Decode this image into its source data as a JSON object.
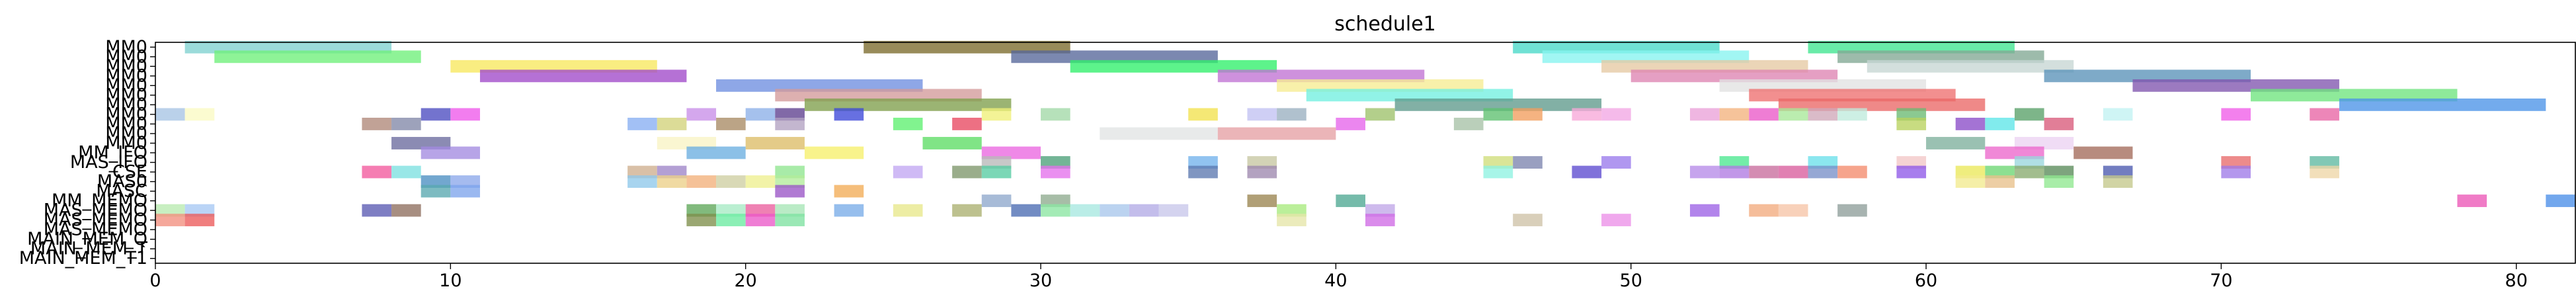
{
  "chart_data": {
    "type": "gantt",
    "title": "schedule1",
    "xlabel": "",
    "ylabel": "",
    "xlim": [
      0,
      82
    ],
    "xticks": [
      0,
      10,
      20,
      30,
      40,
      50,
      60,
      70,
      80
    ],
    "grid": false,
    "rows": [
      "MM0",
      "MM0",
      "MM0",
      "MM0",
      "MM0",
      "MM0",
      "MM0",
      "MM0",
      "MM0",
      "MM0",
      "MM0",
      "MM_IFO",
      "MAS_IFO",
      "CSE",
      "MAS0",
      "MASC",
      "MM_MEMO",
      "MAS_MEMO",
      "MAS_MEMO",
      "MAS_MEMO",
      "MAIN_MEM_Q",
      "MAIN_MEM_T",
      "MAIN_MEM_T1"
    ],
    "tasks": [
      {
        "row": 0,
        "start": 1,
        "end": 8,
        "color": "#7fd1cf"
      },
      {
        "row": 0,
        "start": 24,
        "end": 31,
        "color": "#7b6a2b"
      },
      {
        "row": 0,
        "start": 46,
        "end": 53,
        "color": "#48d8c8"
      },
      {
        "row": 0,
        "start": 56,
        "end": 63,
        "color": "#3fe690"
      },
      {
        "row": 1,
        "start": 2,
        "end": 9,
        "color": "#6ef07a"
      },
      {
        "row": 1,
        "start": 29,
        "end": 36,
        "color": "#56679a"
      },
      {
        "row": 1,
        "start": 47,
        "end": 54,
        "color": "#86f3f0"
      },
      {
        "row": 1,
        "start": 57,
        "end": 64,
        "color": "#82a894"
      },
      {
        "row": 2,
        "start": 10,
        "end": 17,
        "color": "#f7e85e"
      },
      {
        "row": 2,
        "start": 31,
        "end": 38,
        "color": "#2ff06a"
      },
      {
        "row": 2,
        "start": 49,
        "end": 56,
        "color": "#e5c9a3"
      },
      {
        "row": 2,
        "start": 58,
        "end": 65,
        "color": "#c6d6d4"
      },
      {
        "row": 3,
        "start": 11,
        "end": 18,
        "color": "#a049c9"
      },
      {
        "row": 3,
        "start": 36,
        "end": 43,
        "color": "#c072d4"
      },
      {
        "row": 3,
        "start": 50,
        "end": 57,
        "color": "#de84b2"
      },
      {
        "row": 3,
        "start": 64,
        "end": 71,
        "color": "#5a92b8"
      },
      {
        "row": 4,
        "start": 19,
        "end": 26,
        "color": "#6e8ee0"
      },
      {
        "row": 4,
        "start": 38,
        "end": 45,
        "color": "#f6ec92"
      },
      {
        "row": 4,
        "start": 53,
        "end": 60,
        "color": "#e2e2e2"
      },
      {
        "row": 4,
        "start": 67,
        "end": 74,
        "color": "#8054ae"
      },
      {
        "row": 5,
        "start": 21,
        "end": 28,
        "color": "#d49a9a"
      },
      {
        "row": 5,
        "start": 39,
        "end": 46,
        "color": "#72efe0"
      },
      {
        "row": 5,
        "start": 54,
        "end": 61,
        "color": "#ee6f70"
      },
      {
        "row": 5,
        "start": 71,
        "end": 78,
        "color": "#6ee47e"
      },
      {
        "row": 6,
        "start": 22,
        "end": 29,
        "color": "#7f9f4c"
      },
      {
        "row": 6,
        "start": 42,
        "end": 49,
        "color": "#5f9a8c"
      },
      {
        "row": 6,
        "start": 55,
        "end": 62,
        "color": "#ea6866"
      },
      {
        "row": 6,
        "start": 74,
        "end": 81,
        "color": "#4c94e8"
      },
      {
        "row": 7,
        "start": 0,
        "end": 1,
        "color": "#a7c4e4"
      },
      {
        "row": 7,
        "start": 1,
        "end": 2,
        "color": "#fafac3"
      },
      {
        "row": 7,
        "start": 9,
        "end": 10,
        "color": "#4c4cc0"
      },
      {
        "row": 7,
        "start": 10,
        "end": 11,
        "color": "#ee58ea"
      },
      {
        "row": 7,
        "start": 18,
        "end": 19,
        "color": "#c88ee8"
      },
      {
        "row": 7,
        "start": 20,
        "end": 21,
        "color": "#8cb0e8"
      },
      {
        "row": 7,
        "start": 21,
        "end": 22,
        "color": "#5e3f8e"
      },
      {
        "row": 7,
        "start": 23,
        "end": 24,
        "color": "#3c48d8"
      },
      {
        "row": 7,
        "start": 28,
        "end": 29,
        "color": "#f0f078"
      },
      {
        "row": 7,
        "start": 30,
        "end": 31,
        "color": "#a2d8a6"
      },
      {
        "row": 7,
        "start": 35,
        "end": 36,
        "color": "#f2e24e"
      },
      {
        "row": 7,
        "start": 37,
        "end": 38,
        "color": "#c2c2f2"
      },
      {
        "row": 7,
        "start": 38,
        "end": 39,
        "color": "#9ab0c0"
      },
      {
        "row": 7,
        "start": 41,
        "end": 42,
        "color": "#9ec26a"
      },
      {
        "row": 7,
        "start": 45,
        "end": 46,
        "color": "#5ec070"
      },
      {
        "row": 7,
        "start": 46,
        "end": 47,
        "color": "#f29e5e"
      },
      {
        "row": 7,
        "start": 48,
        "end": 49,
        "color": "#f7a8d8"
      },
      {
        "row": 7,
        "start": 49,
        "end": 50,
        "color": "#f2a6e4"
      },
      {
        "row": 7,
        "start": 52,
        "end": 53,
        "color": "#eaa2d8"
      },
      {
        "row": 7,
        "start": 53,
        "end": 54,
        "color": "#f4b27e"
      },
      {
        "row": 7,
        "start": 54,
        "end": 55,
        "color": "#ea58c8"
      },
      {
        "row": 7,
        "start": 55,
        "end": 56,
        "color": "#a8e898"
      },
      {
        "row": 7,
        "start": 56,
        "end": 57,
        "color": "#cfa8b8"
      },
      {
        "row": 7,
        "start": 57,
        "end": 58,
        "color": "#bfeadc"
      },
      {
        "row": 7,
        "start": 59,
        "end": 60,
        "color": "#6aba72"
      },
      {
        "row": 7,
        "start": 63,
        "end": 64,
        "color": "#58a068"
      },
      {
        "row": 7,
        "start": 66,
        "end": 67,
        "color": "#c2f2f2"
      },
      {
        "row": 7,
        "start": 70,
        "end": 71,
        "color": "#f05ce8"
      },
      {
        "row": 7,
        "start": 73,
        "end": 74,
        "color": "#e864a4"
      },
      {
        "row": 8,
        "start": 7,
        "end": 8,
        "color": "#b08878"
      },
      {
        "row": 8,
        "start": 8,
        "end": 9,
        "color": "#8288a8"
      },
      {
        "row": 8,
        "start": 16,
        "end": 17,
        "color": "#88aef2"
      },
      {
        "row": 8,
        "start": 17,
        "end": 18,
        "color": "#d2d27a"
      },
      {
        "row": 8,
        "start": 19,
        "end": 20,
        "color": "#a88a64"
      },
      {
        "row": 8,
        "start": 21,
        "end": 22,
        "color": "#b2a2c2"
      },
      {
        "row": 8,
        "start": 25,
        "end": 26,
        "color": "#5ef070"
      },
      {
        "row": 8,
        "start": 27,
        "end": 28,
        "color": "#e84860"
      },
      {
        "row": 8,
        "start": 40,
        "end": 41,
        "color": "#e664ea"
      },
      {
        "row": 8,
        "start": 44,
        "end": 45,
        "color": "#a6c2a6"
      },
      {
        "row": 8,
        "start": 59,
        "end": 60,
        "color": "#b8d25e"
      },
      {
        "row": 8,
        "start": 61,
        "end": 62,
        "color": "#8a4cc8"
      },
      {
        "row": 8,
        "start": 62,
        "end": 63,
        "color": "#5ee6e8"
      },
      {
        "row": 8,
        "start": 64,
        "end": 65,
        "color": "#d85a7a"
      },
      {
        "row": 9,
        "start": 32,
        "end": 36,
        "color": "#e2e4e4"
      },
      {
        "row": 9,
        "start": 36,
        "end": 40,
        "color": "#e6a0a4"
      },
      {
        "row": 10,
        "start": 8,
        "end": 10,
        "color": "#6a6a9e"
      },
      {
        "row": 10,
        "start": 17,
        "end": 19,
        "color": "#f8f4c4"
      },
      {
        "row": 10,
        "start": 20,
        "end": 22,
        "color": "#dcbc66"
      },
      {
        "row": 10,
        "start": 26,
        "end": 28,
        "color": "#5cdc64"
      },
      {
        "row": 10,
        "start": 60,
        "end": 62,
        "color": "#7eb09c"
      },
      {
        "row": 10,
        "start": 63,
        "end": 65,
        "color": "#ecd2f2"
      },
      {
        "row": 11,
        "start": 9,
        "end": 11,
        "color": "#a38ae0"
      },
      {
        "row": 11,
        "start": 18,
        "end": 20,
        "color": "#6aaee0"
      },
      {
        "row": 11,
        "start": 22,
        "end": 24,
        "color": "#f6f06a"
      },
      {
        "row": 11,
        "start": 28,
        "end": 30,
        "color": "#ea66e0"
      },
      {
        "row": 11,
        "start": 62,
        "end": 64,
        "color": "#ec66cc"
      },
      {
        "row": 11,
        "start": 65,
        "end": 67,
        "color": "#a36a5a"
      },
      {
        "row": 12,
        "start": 28,
        "end": 29,
        "color": "#b8b8b8"
      },
      {
        "row": 12,
        "start": 30,
        "end": 31,
        "color": "#4ca078"
      },
      {
        "row": 12,
        "start": 35,
        "end": 36,
        "color": "#72b2ec"
      },
      {
        "row": 12,
        "start": 37,
        "end": 38,
        "color": "#c6c6a2"
      },
      {
        "row": 12,
        "start": 45,
        "end": 46,
        "color": "#d0de7a"
      },
      {
        "row": 12,
        "start": 46,
        "end": 47,
        "color": "#7c84ae"
      },
      {
        "row": 12,
        "start": 49,
        "end": 50,
        "color": "#9a7aec"
      },
      {
        "row": 12,
        "start": 53,
        "end": 54,
        "color": "#4ce890"
      },
      {
        "row": 12,
        "start": 56,
        "end": 57,
        "color": "#6ae0ea"
      },
      {
        "row": 12,
        "start": 59,
        "end": 60,
        "color": "#f2c6c6"
      },
      {
        "row": 12,
        "start": 63,
        "end": 64,
        "color": "#9ad6dc"
      },
      {
        "row": 12,
        "start": 70,
        "end": 71,
        "color": "#e86a6a"
      },
      {
        "row": 12,
        "start": 73,
        "end": 74,
        "color": "#5eb8a0"
      },
      {
        "row": 13,
        "start": 7,
        "end": 8,
        "color": "#f2589c"
      },
      {
        "row": 13,
        "start": 8,
        "end": 9,
        "color": "#7ce0e0"
      },
      {
        "row": 13,
        "start": 16,
        "end": 17,
        "color": "#ceae8e"
      },
      {
        "row": 13,
        "start": 17,
        "end": 18,
        "color": "#9e84c8"
      },
      {
        "row": 13,
        "start": 21,
        "end": 22,
        "color": "#90e690"
      },
      {
        "row": 13,
        "start": 25,
        "end": 26,
        "color": "#c2a6f2"
      },
      {
        "row": 13,
        "start": 27,
        "end": 28,
        "color": "#7e966a"
      },
      {
        "row": 13,
        "start": 28,
        "end": 29,
        "color": "#56cca2"
      },
      {
        "row": 13,
        "start": 30,
        "end": 31,
        "color": "#e470ec"
      },
      {
        "row": 13,
        "start": 35,
        "end": 36,
        "color": "#5c78b0"
      },
      {
        "row": 13,
        "start": 37,
        "end": 38,
        "color": "#9e88ae"
      },
      {
        "row": 13,
        "start": 45,
        "end": 46,
        "color": "#8ef2e2"
      },
      {
        "row": 13,
        "start": 48,
        "end": 49,
        "color": "#5c4ad0"
      },
      {
        "row": 13,
        "start": 52,
        "end": 53,
        "color": "#b68ae8"
      },
      {
        "row": 13,
        "start": 53,
        "end": 54,
        "color": "#b07ae2"
      },
      {
        "row": 13,
        "start": 54,
        "end": 55,
        "color": "#c86c9c"
      },
      {
        "row": 13,
        "start": 55,
        "end": 56,
        "color": "#d85c9c"
      },
      {
        "row": 13,
        "start": 56,
        "end": 57,
        "color": "#7890c8"
      },
      {
        "row": 13,
        "start": 57,
        "end": 58,
        "color": "#f48a6c"
      },
      {
        "row": 13,
        "start": 59,
        "end": 60,
        "color": "#8e58e8"
      },
      {
        "row": 13,
        "start": 61,
        "end": 62,
        "color": "#eae85a"
      },
      {
        "row": 13,
        "start": 62,
        "end": 63,
        "color": "#6cd672"
      },
      {
        "row": 13,
        "start": 63,
        "end": 64,
        "color": "#88aa6e"
      },
      {
        "row": 13,
        "start": 64,
        "end": 65,
        "color": "#5a8a5a"
      },
      {
        "row": 13,
        "start": 66,
        "end": 67,
        "color": "#4a58ae"
      },
      {
        "row": 13,
        "start": 70,
        "end": 71,
        "color": "#9f7ae8"
      },
      {
        "row": 13,
        "start": 73,
        "end": 74,
        "color": "#eed6a6"
      },
      {
        "row": 14,
        "start": 9,
        "end": 10,
        "color": "#4a8ec2"
      },
      {
        "row": 14,
        "start": 10,
        "end": 11,
        "color": "#8ca8ea"
      },
      {
        "row": 14,
        "start": 16,
        "end": 17,
        "color": "#8ec8ea"
      },
      {
        "row": 14,
        "start": 17,
        "end": 18,
        "color": "#ecd088"
      },
      {
        "row": 14,
        "start": 18,
        "end": 19,
        "color": "#f2b07a"
      },
      {
        "row": 14,
        "start": 19,
        "end": 20,
        "color": "#cecea2"
      },
      {
        "row": 14,
        "start": 20,
        "end": 21,
        "color": "#eef090"
      },
      {
        "row": 14,
        "start": 21,
        "end": 22,
        "color": "#b2ec9a"
      },
      {
        "row": 14,
        "start": 61,
        "end": 62,
        "color": "#f2ea8e"
      },
      {
        "row": 14,
        "start": 62,
        "end": 63,
        "color": "#e8c08a"
      },
      {
        "row": 14,
        "start": 64,
        "end": 65,
        "color": "#90e890"
      },
      {
        "row": 14,
        "start": 66,
        "end": 67,
        "color": "#c4c88a"
      },
      {
        "row": 15,
        "start": 9,
        "end": 10,
        "color": "#58a8b0"
      },
      {
        "row": 15,
        "start": 10,
        "end": 11,
        "color": "#7ea4ec"
      },
      {
        "row": 15,
        "start": 21,
        "end": 22,
        "color": "#9a54c6"
      },
      {
        "row": 15,
        "start": 23,
        "end": 24,
        "color": "#f2ac56"
      },
      {
        "row": 16,
        "start": 28,
        "end": 29,
        "color": "#8ea8cc"
      },
      {
        "row": 16,
        "start": 30,
        "end": 31,
        "color": "#8eaa8e"
      },
      {
        "row": 16,
        "start": 37,
        "end": 38,
        "color": "#9a8450"
      },
      {
        "row": 16,
        "start": 40,
        "end": 41,
        "color": "#4ea892"
      },
      {
        "row": 16,
        "start": 78,
        "end": 79,
        "color": "#ec56b6"
      },
      {
        "row": 16,
        "start": 81,
        "end": 82,
        "color": "#4a8ee8"
      },
      {
        "row": 17,
        "start": 0,
        "end": 1,
        "color": "#b8eab0"
      },
      {
        "row": 17,
        "start": 1,
        "end": 2,
        "color": "#a6c8f4"
      },
      {
        "row": 17,
        "start": 7,
        "end": 8,
        "color": "#5a5ab2"
      },
      {
        "row": 17,
        "start": 8,
        "end": 9,
        "color": "#8e6e5e"
      },
      {
        "row": 17,
        "start": 18,
        "end": 19,
        "color": "#5ea658"
      },
      {
        "row": 17,
        "start": 19,
        "end": 20,
        "color": "#a6eac4"
      },
      {
        "row": 17,
        "start": 20,
        "end": 21,
        "color": "#ea5e9e"
      },
      {
        "row": 17,
        "start": 21,
        "end": 22,
        "color": "#a6e6b6"
      },
      {
        "row": 17,
        "start": 23,
        "end": 24,
        "color": "#78ace8"
      },
      {
        "row": 17,
        "start": 25,
        "end": 26,
        "color": "#e8e88a"
      },
      {
        "row": 17,
        "start": 27,
        "end": 28,
        "color": "#aab070"
      },
      {
        "row": 17,
        "start": 29,
        "end": 30,
        "color": "#4a6cb2"
      },
      {
        "row": 17,
        "start": 30,
        "end": 31,
        "color": "#8ae6a2"
      },
      {
        "row": 17,
        "start": 31,
        "end": 32,
        "color": "#a6e8e0"
      },
      {
        "row": 17,
        "start": 32,
        "end": 33,
        "color": "#a8c6ec"
      },
      {
        "row": 17,
        "start": 33,
        "end": 34,
        "color": "#b2aae6"
      },
      {
        "row": 17,
        "start": 34,
        "end": 35,
        "color": "#c8c6ea"
      },
      {
        "row": 17,
        "start": 38,
        "end": 39,
        "color": "#a8ea7e"
      },
      {
        "row": 17,
        "start": 41,
        "end": 42,
        "color": "#c0a6e8"
      },
      {
        "row": 17,
        "start": 52,
        "end": 53,
        "color": "#9c62e6"
      },
      {
        "row": 17,
        "start": 54,
        "end": 55,
        "color": "#f2aa7e"
      },
      {
        "row": 17,
        "start": 55,
        "end": 56,
        "color": "#f6c4a6"
      },
      {
        "row": 17,
        "start": 57,
        "end": 58,
        "color": "#8e9e9a"
      },
      {
        "row": 18,
        "start": 0,
        "end": 1,
        "color": "#f28e7e"
      },
      {
        "row": 18,
        "start": 1,
        "end": 2,
        "color": "#ec5a5a"
      },
      {
        "row": 18,
        "start": 18,
        "end": 19,
        "color": "#7e8e4a"
      },
      {
        "row": 18,
        "start": 19,
        "end": 20,
        "color": "#6aeaa0"
      },
      {
        "row": 18,
        "start": 20,
        "end": 21,
        "color": "#ea58c8"
      },
      {
        "row": 18,
        "start": 21,
        "end": 22,
        "color": "#7ee2a0"
      },
      {
        "row": 18,
        "start": 38,
        "end": 39,
        "color": "#e6e6a8"
      },
      {
        "row": 18,
        "start": 41,
        "end": 42,
        "color": "#d06ae6"
      },
      {
        "row": 18,
        "start": 46,
        "end": 47,
        "color": "#cec2a6"
      },
      {
        "row": 18,
        "start": 49,
        "end": 50,
        "color": "#ec90e8"
      }
    ]
  }
}
